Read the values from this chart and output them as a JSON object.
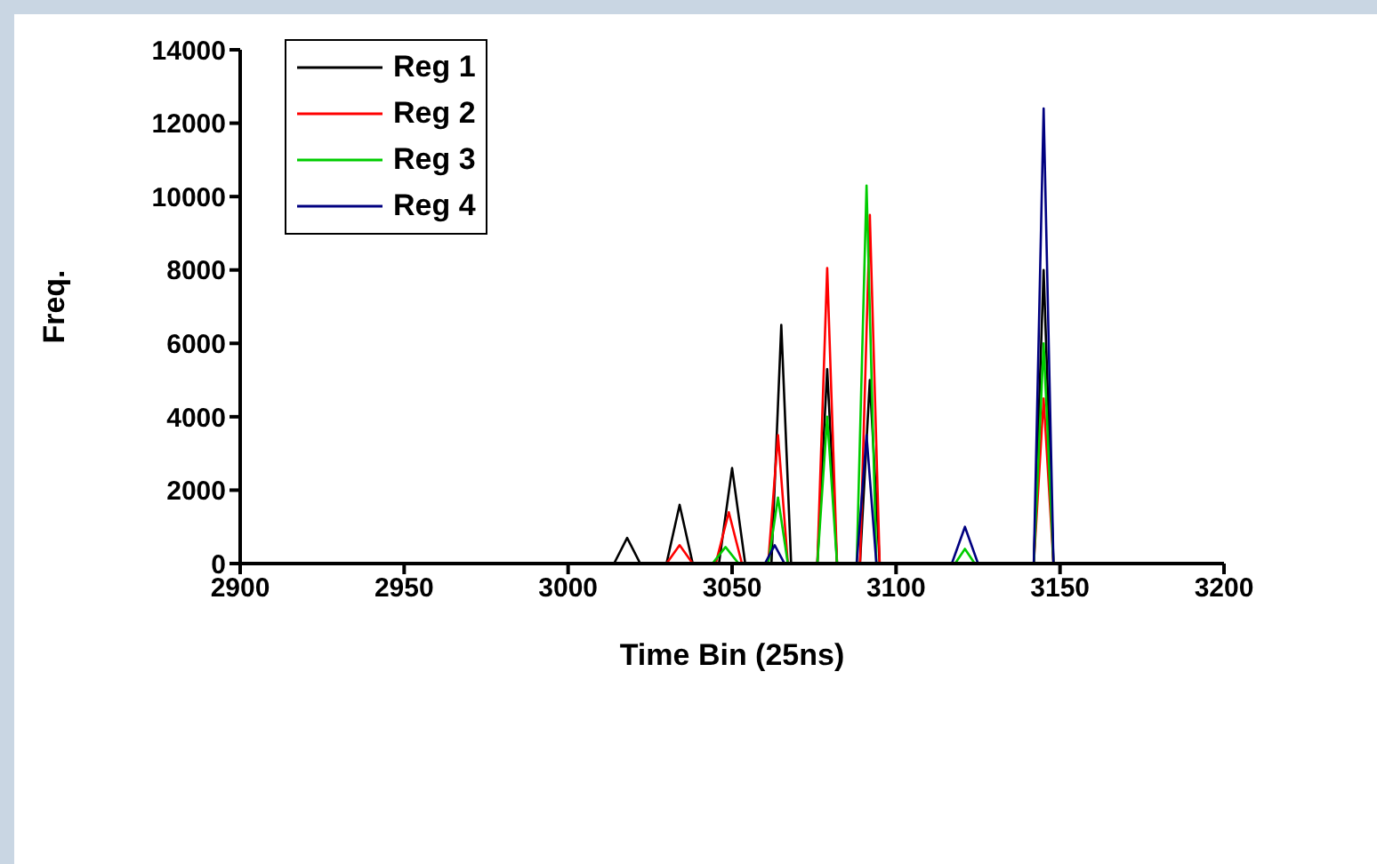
{
  "chart_data": {
    "type": "line",
    "xlabel": "Time Bin (25ns)",
    "ylabel": "Freq.",
    "xlim": [
      2900,
      3200
    ],
    "xticks": [
      2900,
      2950,
      3000,
      3050,
      3100,
      3150,
      3200
    ],
    "ylim": [
      0,
      14000
    ],
    "yticks": [
      0,
      2000,
      4000,
      6000,
      8000,
      10000,
      12000,
      14000
    ],
    "legend": "top left",
    "grid": false,
    "marker": "none",
    "series": [
      {
        "name": "Reg 1",
        "color": "#000000",
        "x": [
          2900,
          3014,
          3018,
          3022,
          3030,
          3034,
          3038,
          3046,
          3050,
          3054,
          3062,
          3065,
          3068,
          3076,
          3079,
          3082,
          3089,
          3092,
          3095,
          3142,
          3145,
          3148,
          3200
        ],
        "values": [
          0,
          0,
          700,
          0,
          0,
          1600,
          0,
          0,
          2600,
          0,
          0,
          6500,
          0,
          0,
          5300,
          0,
          0,
          5000,
          0,
          0,
          8000,
          0,
          0
        ]
      },
      {
        "name": "Reg 2",
        "color": "#ff0000",
        "x": [
          2900,
          3030,
          3034,
          3038,
          3045,
          3049,
          3053,
          3061,
          3064,
          3067,
          3076,
          3079,
          3082,
          3089,
          3092,
          3095,
          3142,
          3145,
          3148,
          3200
        ],
        "values": [
          0,
          0,
          500,
          0,
          0,
          1400,
          0,
          0,
          3500,
          0,
          0,
          8050,
          0,
          0,
          9500,
          0,
          0,
          4500,
          0,
          0
        ]
      },
      {
        "name": "Reg 3",
        "color": "#00cc00",
        "x": [
          2900,
          3044,
          3048,
          3052,
          3061,
          3064,
          3067,
          3076,
          3079,
          3082,
          3088,
          3091,
          3094,
          3118,
          3121,
          3124,
          3142,
          3145,
          3148,
          3200
        ],
        "values": [
          0,
          0,
          450,
          0,
          0,
          1800,
          0,
          0,
          4000,
          0,
          0,
          10300,
          0,
          0,
          400,
          0,
          0,
          6000,
          0,
          0
        ]
      },
      {
        "name": "Reg 4",
        "color": "#000080",
        "x": [
          2900,
          3060,
          3063,
          3066,
          3088,
          3091,
          3094,
          3117,
          3121,
          3125,
          3142,
          3145,
          3148,
          3200
        ],
        "values": [
          0,
          0,
          500,
          0,
          0,
          3500,
          0,
          0,
          1000,
          0,
          0,
          12400,
          0,
          0
        ]
      }
    ]
  }
}
